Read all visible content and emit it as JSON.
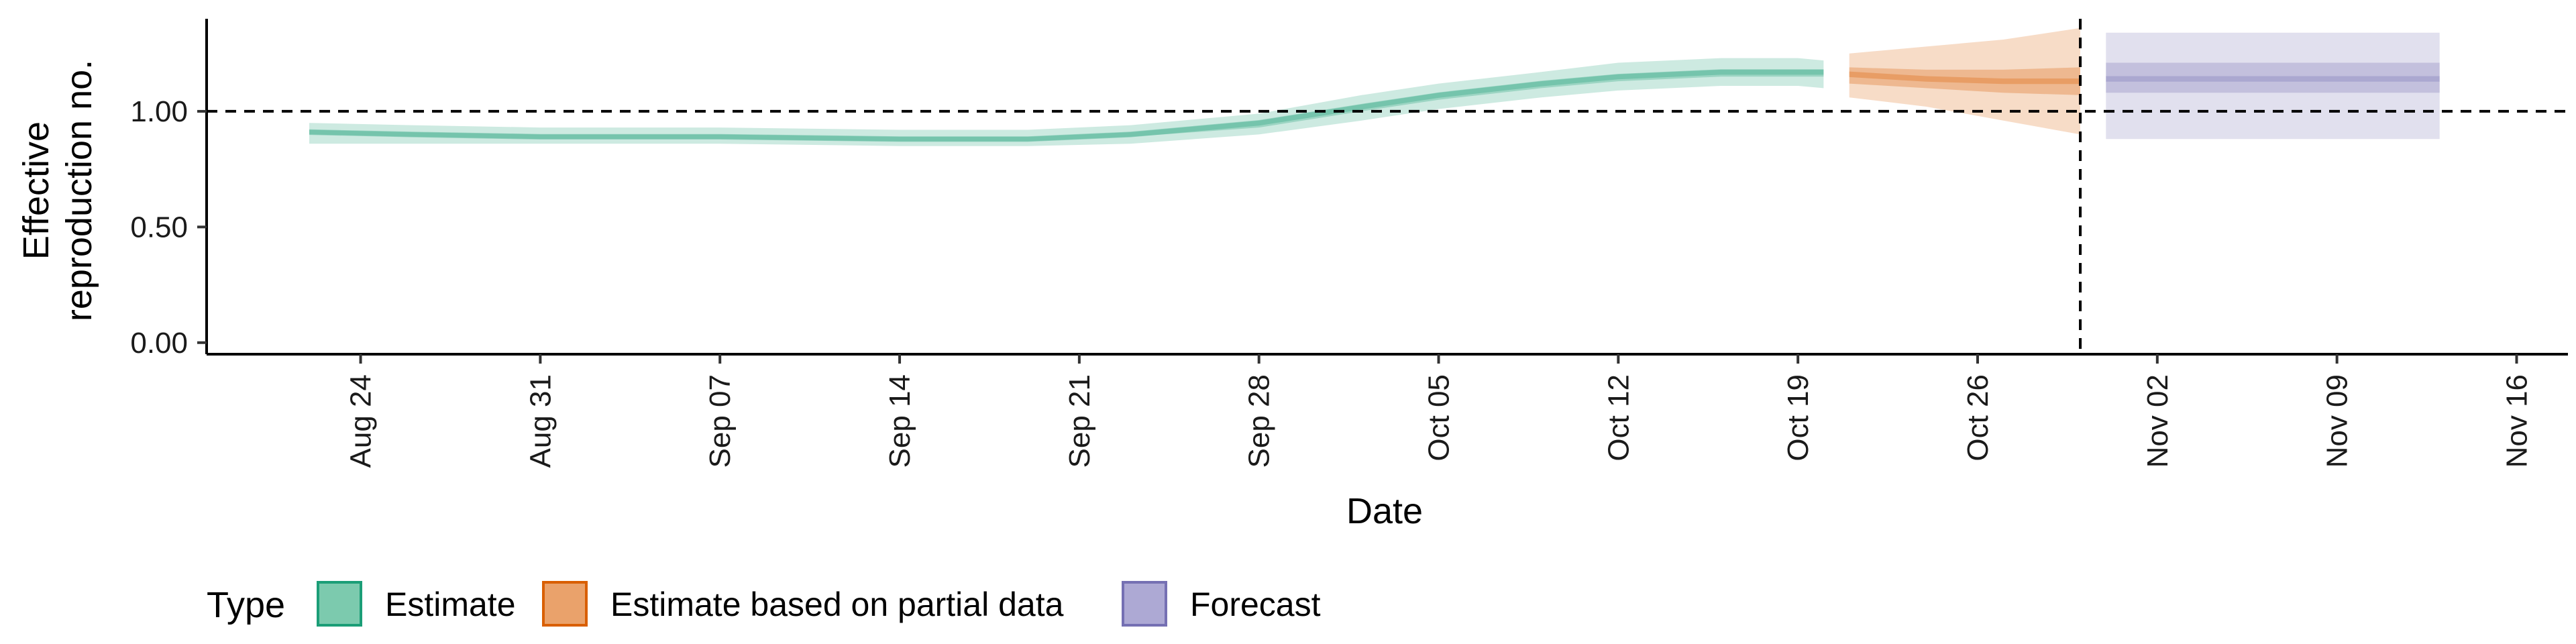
{
  "chart_data": {
    "type": "area",
    "title": "",
    "xlabel": "Date",
    "ylabel": [
      "Effective",
      "reproduction no."
    ],
    "x_axis": {
      "range": [
        "2020-08-18",
        "2020-11-18"
      ],
      "ticks": [
        "2020-08-24",
        "2020-08-31",
        "2020-09-07",
        "2020-09-14",
        "2020-09-21",
        "2020-09-28",
        "2020-10-05",
        "2020-10-12",
        "2020-10-19",
        "2020-10-26",
        "2020-11-02",
        "2020-11-09",
        "2020-11-16"
      ],
      "tick_labels": [
        "Aug 24",
        "Aug 31",
        "Sep 07",
        "Sep 14",
        "Sep 21",
        "Sep 28",
        "Oct 05",
        "Oct 12",
        "Oct 19",
        "Oct 26",
        "Nov 02",
        "Nov 09",
        "Nov 16"
      ]
    },
    "y_axis": {
      "range": [
        -0.05,
        1.4
      ],
      "ticks": [
        0,
        0.5,
        1.0
      ],
      "tick_labels": [
        "0.00",
        "0.50",
        "1.00"
      ]
    },
    "reference_lines": {
      "horizontal_y": 1.0,
      "vertical_x": "2020-10-30"
    },
    "grid": false,
    "legend": {
      "title": "Type",
      "position": "bottom-left",
      "entries": [
        {
          "label": "Estimate",
          "fill": "#7ccaae",
          "stroke": "#1b9e77"
        },
        {
          "label": "Estimate based on partial data",
          "fill": "#eaa26b",
          "stroke": "#d95f02"
        },
        {
          "label": "Forecast",
          "fill": "#ada9d4",
          "stroke": "#7570b3"
        }
      ]
    },
    "series": [
      {
        "name": "Estimate",
        "color": "#1b9e77",
        "x": [
          "2020-08-22",
          "2020-08-26",
          "2020-08-31",
          "2020-09-07",
          "2020-09-14",
          "2020-09-19",
          "2020-09-23",
          "2020-09-28",
          "2020-10-02",
          "2020-10-05",
          "2020-10-09",
          "2020-10-12",
          "2020-10-16",
          "2020-10-19",
          "2020-10-20"
        ],
        "median": [
          0.91,
          0.9,
          0.89,
          0.89,
          0.88,
          0.88,
          0.9,
          0.95,
          1.02,
          1.07,
          1.12,
          1.15,
          1.17,
          1.17,
          1.17
        ],
        "lower_50": [
          0.9,
          0.89,
          0.88,
          0.88,
          0.87,
          0.87,
          0.89,
          0.93,
          1.0,
          1.05,
          1.1,
          1.13,
          1.15,
          1.15,
          1.15
        ],
        "upper_50": [
          0.92,
          0.91,
          0.9,
          0.9,
          0.89,
          0.89,
          0.91,
          0.96,
          1.03,
          1.08,
          1.13,
          1.16,
          1.18,
          1.18,
          1.18
        ],
        "lower_90": [
          0.86,
          0.86,
          0.86,
          0.86,
          0.85,
          0.85,
          0.86,
          0.9,
          0.96,
          1.01,
          1.06,
          1.09,
          1.11,
          1.11,
          1.1
        ],
        "upper_90": [
          0.95,
          0.94,
          0.93,
          0.93,
          0.92,
          0.92,
          0.94,
          0.99,
          1.07,
          1.12,
          1.17,
          1.21,
          1.23,
          1.23,
          1.22
        ]
      },
      {
        "name": "Estimate based on partial data",
        "color": "#d95f02",
        "x": [
          "2020-10-21",
          "2020-10-24",
          "2020-10-27",
          "2020-10-30"
        ],
        "median": [
          1.16,
          1.14,
          1.13,
          1.13
        ],
        "lower_50": [
          1.12,
          1.1,
          1.08,
          1.07
        ],
        "upper_50": [
          1.19,
          1.18,
          1.18,
          1.19
        ],
        "lower_90": [
          1.06,
          1.02,
          0.96,
          0.9
        ],
        "upper_90": [
          1.25,
          1.28,
          1.31,
          1.36
        ]
      },
      {
        "name": "Forecast",
        "color": "#7570b3",
        "x": [
          "2020-10-31",
          "2020-11-13"
        ],
        "median": [
          1.14,
          1.14
        ],
        "lower_50": [
          1.08,
          1.08
        ],
        "upper_50": [
          1.21,
          1.21
        ],
        "lower_90": [
          0.88,
          0.88
        ],
        "upper_90": [
          1.34,
          1.34
        ]
      }
    ]
  }
}
